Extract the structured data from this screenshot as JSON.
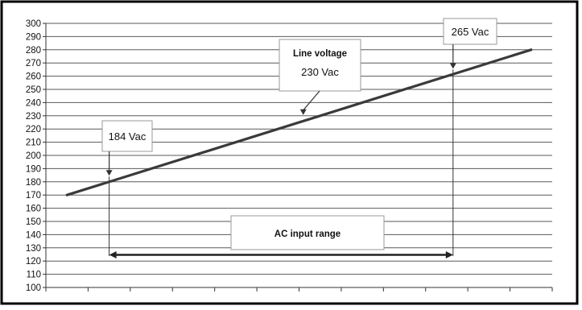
{
  "chart_data": {
    "type": "line",
    "title": "",
    "xlabel": "",
    "ylabel": "",
    "ylim": [
      100,
      300
    ],
    "yticks": [
      100,
      110,
      120,
      130,
      140,
      150,
      160,
      170,
      180,
      190,
      200,
      210,
      220,
      230,
      240,
      250,
      260,
      270,
      280,
      290,
      300
    ],
    "x_divisions": 12,
    "grid": "horizontal",
    "series": [
      {
        "values": [
          [
            0.5,
            170
          ],
          [
            11.5,
            280
          ]
        ],
        "color": "#3a3a3a"
      }
    ],
    "annotations": [
      {
        "id": "184",
        "text": "184 Vac",
        "arrow_to": [
          1.5,
          184
        ]
      },
      {
        "id": "230",
        "title": "Line voltage",
        "text": "230 Vac",
        "arrow_to": [
          6.1,
          230
        ]
      },
      {
        "id": "265",
        "text": "265 Vac",
        "arrow_to": [
          9.65,
          265
        ]
      }
    ],
    "range": {
      "label": "AC input range",
      "from_x": 1.5,
      "to_x": 9.65,
      "y": 125
    }
  }
}
